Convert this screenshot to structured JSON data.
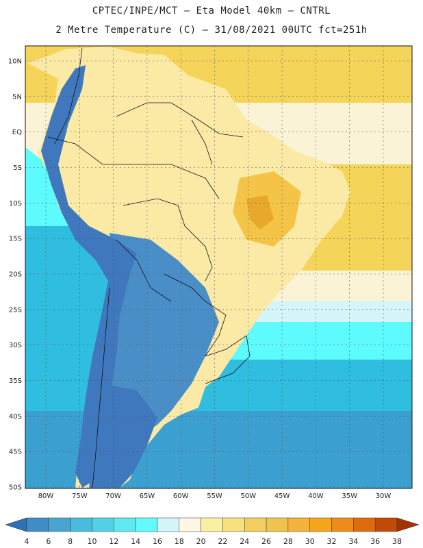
{
  "header": {
    "line1": "CPTEC/INPE/MCT –  Eta Model 40km – CNTRL",
    "line2": "2 Metre Temperature (C) – 31/08/2021 00UTC fct=251h"
  },
  "map": {
    "lat_labels": [
      "10N",
      "5N",
      "EQ",
      "5S",
      "10S",
      "15S",
      "20S",
      "25S",
      "30S",
      "35S",
      "40S",
      "45S",
      "50S"
    ],
    "lon_labels": [
      "80W",
      "75W",
      "70W",
      "65W",
      "60W",
      "55W",
      "50W",
      "45W",
      "40W",
      "35W",
      "30W"
    ],
    "colors": {
      "ocean_north": "#f5d45a",
      "ocean_tropic": "#fbf3d6",
      "ocean_sub": "#d4f6fb",
      "ocean_cyan": "#5dfbfd",
      "ocean_mid": "#2fbde0",
      "ocean_south": "#3b9fd0",
      "land_warm": "#fbe9a6",
      "land_hot": "#f3c446",
      "land_hottest": "#e8a82a",
      "andes_cold": "#3f78bd",
      "patagonia": "#4a8ec8",
      "border": "#111111"
    }
  },
  "colorbar": {
    "labels": [
      "4",
      "6",
      "8",
      "10",
      "12",
      "14",
      "16",
      "18",
      "20",
      "22",
      "24",
      "26",
      "28",
      "30",
      "32",
      "34",
      "36",
      "38"
    ],
    "colors": [
      "#2f6fb5",
      "#3f8cc6",
      "#48a5d3",
      "#46bde0",
      "#52d2e6",
      "#5fe8ef",
      "#62fbfd",
      "#d4f6fb",
      "#fdf8e6",
      "#fbf0a0",
      "#f7e07e",
      "#f3d05e",
      "#efc44c",
      "#f4b33a",
      "#f5a61b",
      "#ed8c1d",
      "#df6b0d",
      "#c24a07",
      "#a33203"
    ]
  }
}
